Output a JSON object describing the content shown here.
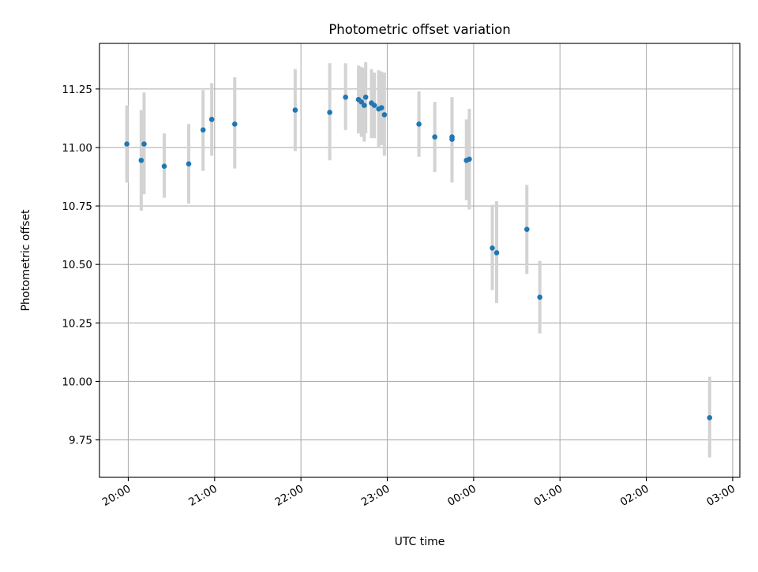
{
  "chart_data": {
    "type": "scatter",
    "title": "Photometric offset variation",
    "xlabel": "UTC time",
    "ylabel": "Photometric offset",
    "grid": true,
    "legend": "none",
    "x_axis": {
      "scale": "time",
      "range": [
        "19:40",
        "03:05"
      ],
      "ticks": [
        "20:00",
        "21:00",
        "22:00",
        "23:00",
        "00:00",
        "01:00",
        "02:00",
        "03:00"
      ]
    },
    "y_axis": {
      "range": [
        9.59,
        11.445
      ],
      "ticks": [
        9.75,
        10.0,
        10.25,
        10.5,
        10.75,
        11.0,
        11.25
      ],
      "tick_labels": [
        "9.75",
        "10.00",
        "10.25",
        "10.50",
        "10.75",
        "11.00",
        "11.25"
      ]
    },
    "colors": {
      "point": "#1f77b4",
      "errorbar": "#d3d3d3",
      "grid": "#b0b0b0",
      "axes": "#000000"
    },
    "series": [
      {
        "points": [
          {
            "t": "19:59",
            "y": 11.015,
            "low": 10.85,
            "high": 11.18
          },
          {
            "t": "20:09",
            "y": 10.945,
            "low": 10.73,
            "high": 11.16
          },
          {
            "t": "20:11",
            "y": 11.015,
            "low": 10.8,
            "high": 11.235
          },
          {
            "t": "20:25",
            "y": 10.92,
            "low": 10.785,
            "high": 11.06
          },
          {
            "t": "20:42",
            "y": 10.93,
            "low": 10.76,
            "high": 11.1
          },
          {
            "t": "20:52",
            "y": 11.075,
            "low": 10.9,
            "high": 11.245
          },
          {
            "t": "20:58",
            "y": 11.12,
            "low": 10.965,
            "high": 11.275
          },
          {
            "t": "21:14",
            "y": 11.1,
            "low": 10.91,
            "high": 11.3
          },
          {
            "t": "21:56",
            "y": 11.16,
            "low": 10.985,
            "high": 11.335
          },
          {
            "t": "22:20",
            "y": 11.15,
            "low": 10.945,
            "high": 11.36
          },
          {
            "t": "22:31",
            "y": 11.215,
            "low": 11.075,
            "high": 11.36
          },
          {
            "t": "22:40",
            "y": 11.205,
            "low": 11.06,
            "high": 11.35
          },
          {
            "t": "22:42",
            "y": 11.195,
            "low": 11.045,
            "high": 11.345
          },
          {
            "t": "22:44",
            "y": 11.18,
            "low": 11.025,
            "high": 11.34
          },
          {
            "t": "22:45",
            "y": 11.215,
            "low": 11.06,
            "high": 11.365
          },
          {
            "t": "22:49",
            "y": 11.19,
            "low": 11.04,
            "high": 11.335
          },
          {
            "t": "22:51",
            "y": 11.18,
            "low": 11.04,
            "high": 11.32
          },
          {
            "t": "22:54",
            "y": 11.165,
            "low": 11.0,
            "high": 11.33
          },
          {
            "t": "22:56",
            "y": 11.17,
            "low": 11.01,
            "high": 11.325
          },
          {
            "t": "22:58",
            "y": 11.14,
            "low": 10.965,
            "high": 11.32
          },
          {
            "t": "23:22",
            "y": 11.1,
            "low": 10.96,
            "high": 11.24
          },
          {
            "t": "23:33",
            "y": 11.045,
            "low": 10.895,
            "high": 11.195
          },
          {
            "t": "23:45",
            "y": 11.035,
            "low": 10.85,
            "high": 11.215
          },
          {
            "t": "23:45",
            "y": 11.045,
            "low": 10.875,
            "high": 11.215
          },
          {
            "t": "23:55",
            "y": 10.945,
            "low": 10.775,
            "high": 11.12
          },
          {
            "t": "23:57",
            "y": 10.95,
            "low": 10.735,
            "high": 11.165
          },
          {
            "t": "00:13",
            "y": 10.57,
            "low": 10.39,
            "high": 10.755
          },
          {
            "t": "00:16",
            "y": 10.55,
            "low": 10.335,
            "high": 10.77
          },
          {
            "t": "00:37",
            "y": 10.65,
            "low": 10.46,
            "high": 10.84
          },
          {
            "t": "00:46",
            "y": 10.36,
            "low": 10.205,
            "high": 10.515
          },
          {
            "t": "02:44",
            "y": 9.845,
            "low": 9.675,
            "high": 10.02
          }
        ]
      }
    ]
  }
}
